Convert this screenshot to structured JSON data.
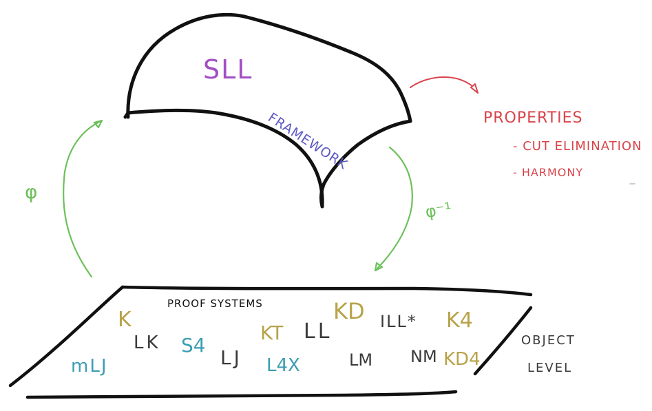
{
  "colors": {
    "ink": "#111111",
    "green_arrow": "#6cc05a",
    "red_arrow": "#d9434a",
    "purple": "#a24fc4",
    "blue": "#5d59c4",
    "gold": "#b8a34a",
    "teal": "#3c9db3",
    "dark_gray": "#3a3a3a"
  },
  "framework": {
    "name": "SLL",
    "caption": "FRAMEWORK"
  },
  "mappings": {
    "encode_label": "φ",
    "decode_label": "φ⁻¹"
  },
  "properties": {
    "title": "PROPERTIES",
    "items": [
      "- CUT ELIMINATION",
      "- HARMONY"
    ]
  },
  "object_level": {
    "plane_caption": "PROOF SYSTEMS",
    "side_label_line1": "OBJECT",
    "side_label_line2": "LEVEL",
    "systems": [
      {
        "label": "K",
        "color": "gold"
      },
      {
        "label": "LK",
        "color": "dark_gray"
      },
      {
        "label": "S4",
        "color": "teal"
      },
      {
        "label": "mLJ",
        "color": "teal"
      },
      {
        "label": "LJ",
        "color": "dark_gray"
      },
      {
        "label": "KT",
        "color": "gold"
      },
      {
        "label": "L4X",
        "color": "teal"
      },
      {
        "label": "LL",
        "color": "dark_gray"
      },
      {
        "label": "KD",
        "color": "gold"
      },
      {
        "label": "LM",
        "color": "dark_gray"
      },
      {
        "label": "ILL*",
        "color": "dark_gray"
      },
      {
        "label": "NM",
        "color": "dark_gray"
      },
      {
        "label": "K4",
        "color": "gold"
      },
      {
        "label": "KD4",
        "color": "gold"
      }
    ]
  }
}
